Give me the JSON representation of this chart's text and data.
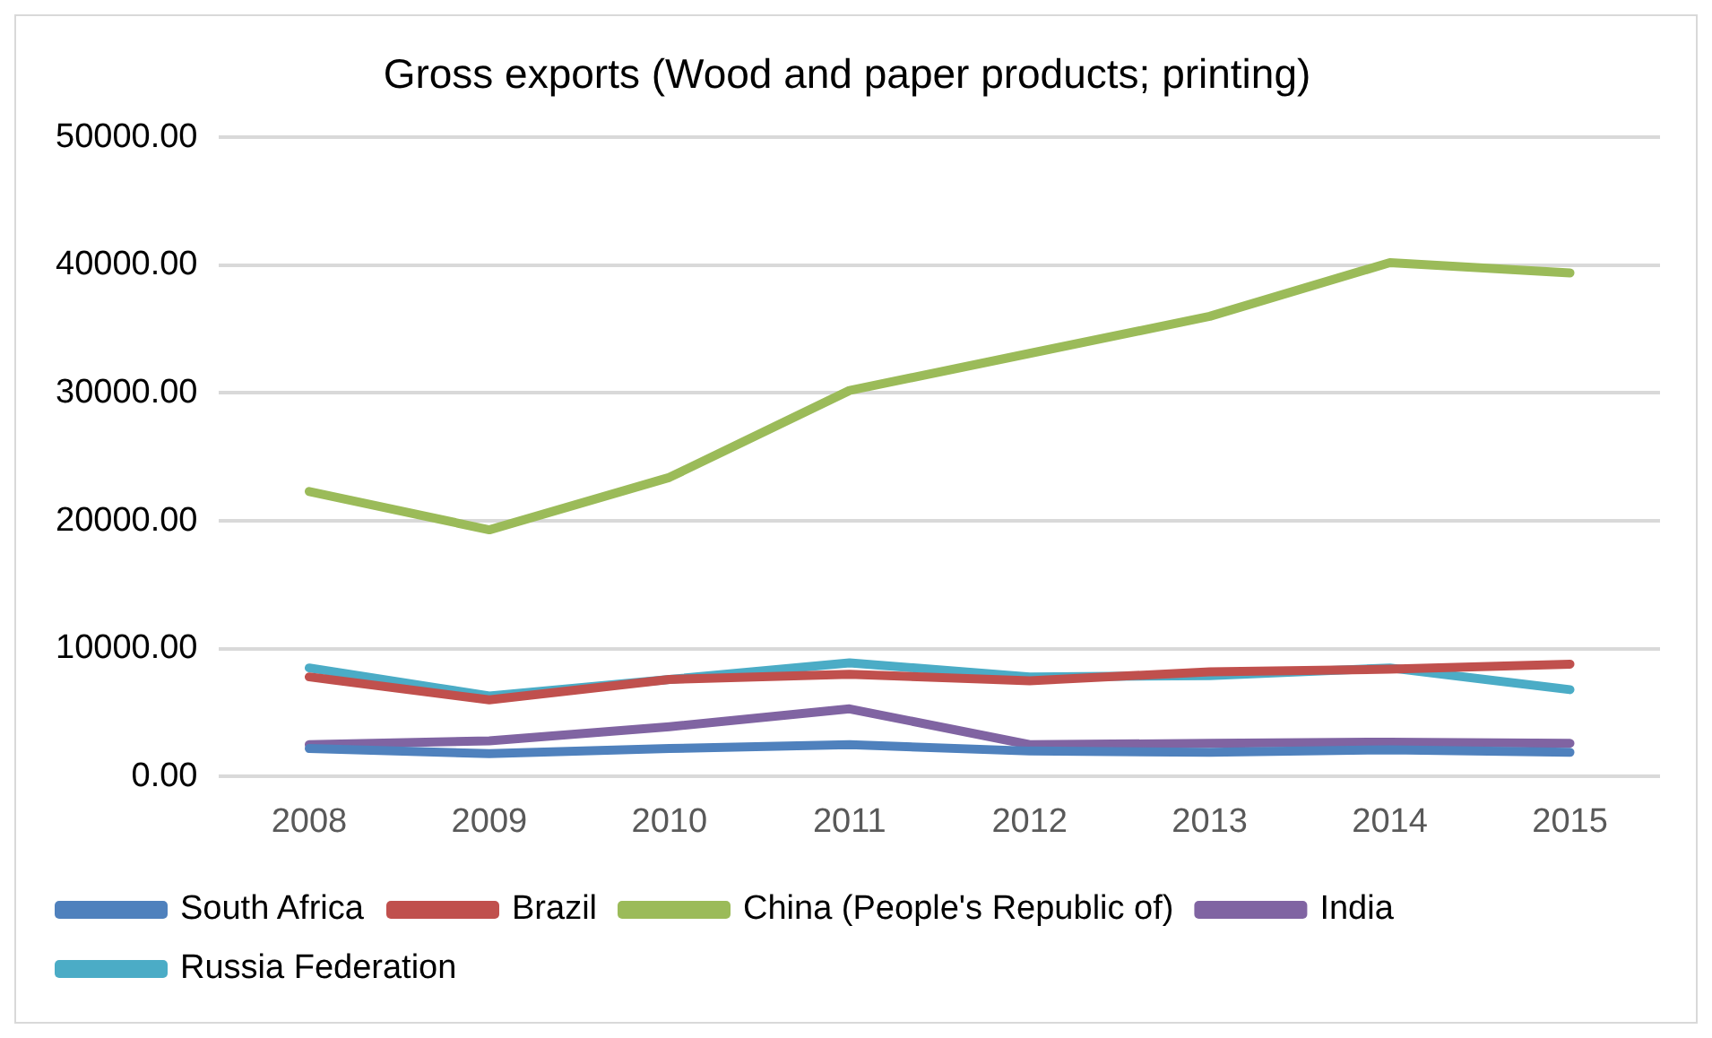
{
  "chart_data": {
    "type": "line",
    "title": "Gross exports (Wood and paper products; printing)",
    "categories": [
      "2008",
      "2009",
      "2010",
      "2011",
      "2012",
      "2013",
      "2014",
      "2015"
    ],
    "series": [
      {
        "name": "South Africa",
        "color": "#4f81bd",
        "values": [
          2200,
          1800,
          2200,
          2500,
          2000,
          1900,
          2100,
          1900
        ]
      },
      {
        "name": "Brazil",
        "color": "#c0504d",
        "values": [
          7800,
          6000,
          7600,
          8000,
          7500,
          8200,
          8400,
          8800
        ]
      },
      {
        "name": "China (People's Republic of)",
        "color": "#9bbb59",
        "values": [
          22300,
          19300,
          23400,
          30200,
          33100,
          36000,
          40200,
          39400
        ]
      },
      {
        "name": "India",
        "color": "#8064a2",
        "values": [
          2500,
          2800,
          3900,
          5300,
          2500,
          2600,
          2700,
          2600
        ]
      },
      {
        "name": "Russia Federation",
        "color": "#4bacc6",
        "values": [
          8500,
          6300,
          7600,
          8900,
          7800,
          7900,
          8500,
          6800
        ]
      }
    ],
    "ylim": [
      0,
      50000
    ],
    "yticks": [
      {
        "value": 0,
        "label": "0.00"
      },
      {
        "value": 10000,
        "label": "10000.00"
      },
      {
        "value": 20000,
        "label": "20000.00"
      },
      {
        "value": 30000,
        "label": "30000.00"
      },
      {
        "value": 40000,
        "label": "40000.00"
      },
      {
        "value": 50000,
        "label": "50000.00"
      }
    ],
    "grid": "y",
    "legend": "bottom",
    "marker": "none",
    "line_style": "solid"
  }
}
